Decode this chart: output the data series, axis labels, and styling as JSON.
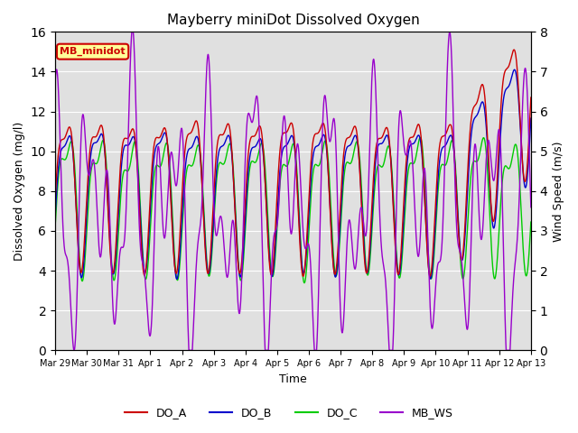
{
  "title": "Mayberry miniDot Dissolved Oxygen",
  "xlabel": "Time",
  "ylabel_left": "Dissolved Oxygen (mg/l)",
  "ylabel_right": "Wind Speed (m/s)",
  "ylim_left": [
    0,
    16
  ],
  "ylim_right": [
    0.0,
    8.0
  ],
  "yticks_left": [
    0,
    2,
    4,
    6,
    8,
    10,
    12,
    14,
    16
  ],
  "yticks_right": [
    0.0,
    1.0,
    2.0,
    3.0,
    4.0,
    5.0,
    6.0,
    7.0,
    8.0
  ],
  "n_points": 3000,
  "xtick_labels": [
    "Mar 29",
    "Mar 30",
    "Mar 31",
    "Apr 1",
    "Apr 2",
    "Apr 3",
    "Apr 4",
    "Apr 5",
    "Apr 6",
    "Apr 7",
    "Apr 8",
    "Apr 9",
    "Apr 10",
    "Apr 11",
    "Apr 12",
    "Apr 13"
  ],
  "color_DO_A": "#cc0000",
  "color_DO_B": "#0000cc",
  "color_DO_C": "#00cc00",
  "color_MB_WS": "#9900cc",
  "legend_label_A": "DO_A",
  "legend_label_B": "DO_B",
  "legend_label_C": "DO_C",
  "legend_label_WS": "MB_WS",
  "inset_label": "MB_minidot",
  "inset_color": "#cc0000",
  "inset_bg": "#ffff99",
  "inset_border": "#cc0000",
  "background_gray": "#e0e0e0",
  "linewidth": 1.0,
  "seed": 42
}
